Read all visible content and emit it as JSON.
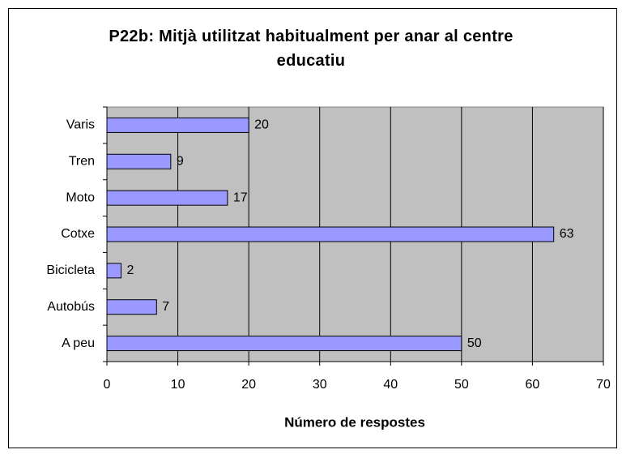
{
  "chart_data": {
    "type": "bar",
    "orientation": "horizontal",
    "title": "P22b: Mitjà utilitzat habitualment per anar al centre educatiu",
    "x_label": "Número de respostes",
    "categories": [
      "Varis",
      "Tren",
      "Moto",
      "Cotxe",
      "Bicicleta",
      "Autobús",
      "A peu"
    ],
    "values": [
      20,
      9,
      17,
      63,
      2,
      7,
      50
    ],
    "color": "#9999ff",
    "xlim": [
      0,
      70
    ],
    "xticks": [
      0,
      10,
      20,
      30,
      40,
      50,
      60,
      70
    ],
    "grid": true
  }
}
